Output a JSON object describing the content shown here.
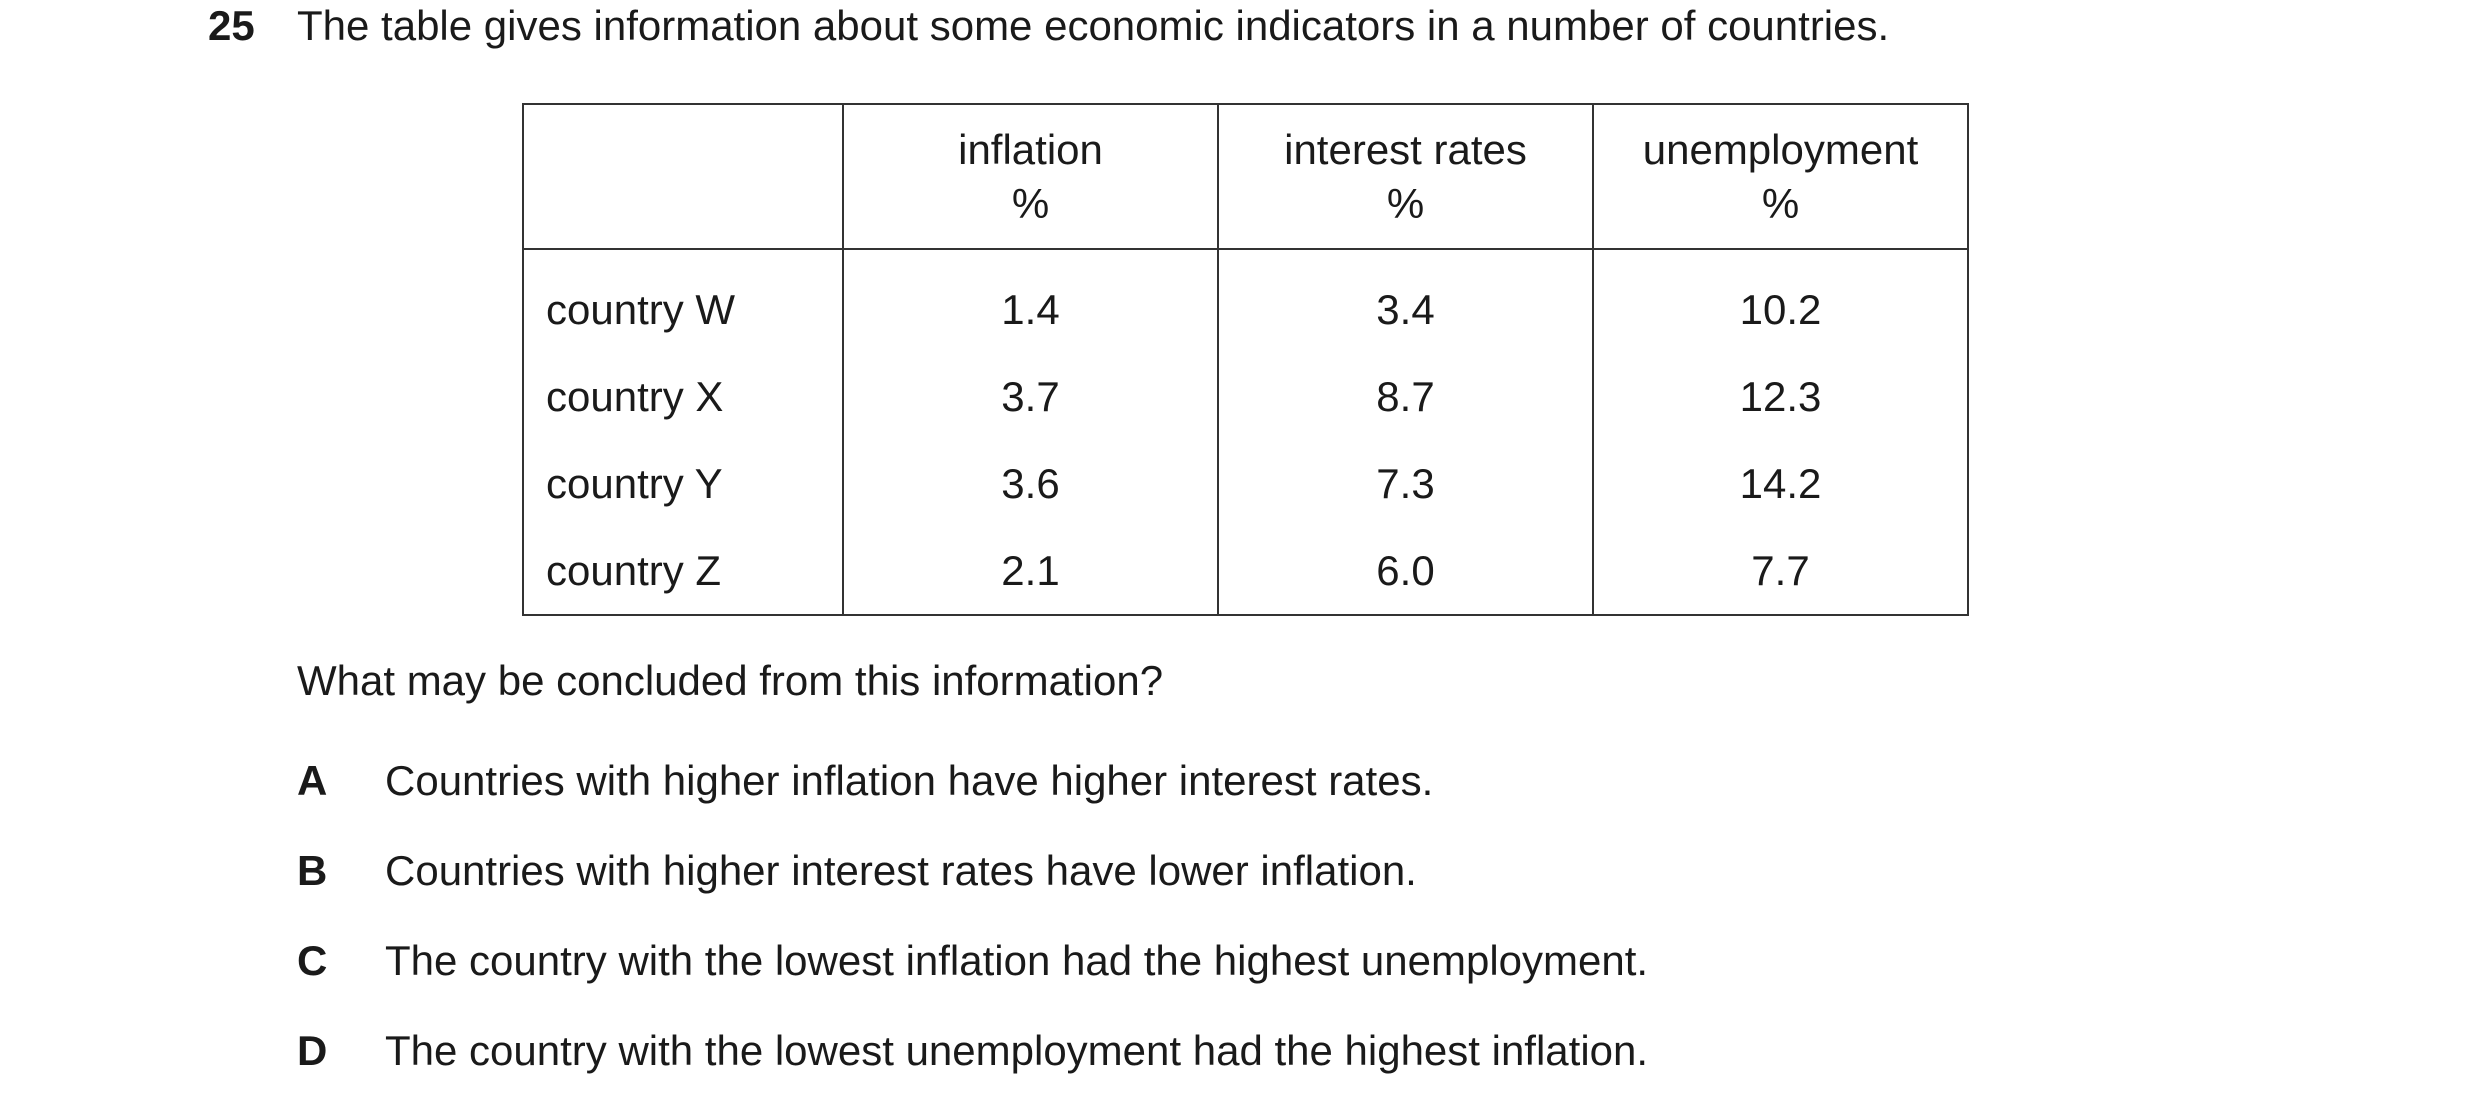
{
  "question": {
    "number": "25",
    "stem": "The table gives information about some economic indicators in a number of countries."
  },
  "table": {
    "headers": [
      {
        "line1": "",
        "line2": ""
      },
      {
        "line1": "inflation",
        "line2": "%"
      },
      {
        "line1": "interest rates",
        "line2": "%"
      },
      {
        "line1": "unemployment",
        "line2": "%"
      }
    ],
    "rows": [
      {
        "label": "country W",
        "inflation": "1.4",
        "interest": "3.4",
        "unemployment": "10.2"
      },
      {
        "label": "country X",
        "inflation": "3.7",
        "interest": "8.7",
        "unemployment": "12.3"
      },
      {
        "label": "country Y",
        "inflation": "3.6",
        "interest": "7.3",
        "unemployment": "14.2"
      },
      {
        "label": "country Z",
        "inflation": "2.1",
        "interest": "6.0",
        "unemployment": "7.7"
      }
    ]
  },
  "prompt": "What may be concluded from this information?",
  "options": [
    {
      "letter": "A",
      "text": "Countries with higher inflation have higher interest rates."
    },
    {
      "letter": "B",
      "text": "Countries with higher interest rates have lower inflation."
    },
    {
      "letter": "C",
      "text": "The country with the lowest inflation had the highest unemployment."
    },
    {
      "letter": "D",
      "text": "The country with the lowest unemployment had the highest inflation."
    }
  ]
}
